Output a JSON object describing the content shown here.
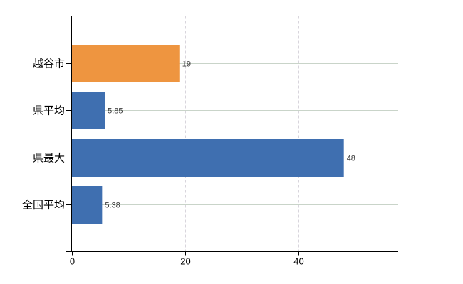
{
  "chart_data": {
    "type": "bar",
    "orientation": "horizontal",
    "title": "",
    "categories": [
      "越谷市",
      "県平均",
      "県最大",
      "全国平均"
    ],
    "values": [
      19,
      5.85,
      48,
      5.38
    ],
    "value_labels": [
      "19",
      "5.85",
      "48",
      "5.38"
    ],
    "bar_colors": [
      "#EE9540",
      "#3F6FB0",
      "#3F6FB0",
      "#3F6FB0"
    ],
    "x_axis": {
      "ticks": [
        0,
        20,
        40
      ],
      "tick_labels": [
        "0",
        "20",
        "40"
      ],
      "range": [
        0,
        57.6
      ]
    },
    "grid": {
      "horizontal_category_lines": true,
      "vertical_tick_lines": true,
      "top_border_dashed": true
    },
    "legend": false,
    "colors": {
      "axis": "#000000",
      "h_gridline": "#C9D4C9",
      "v_gridline": "#D8D5DC",
      "category_label_text": "#000000",
      "tick_label_text": "#000000",
      "value_label_text": "#3A3A3A",
      "background": "#FFFFFF",
      "highlight_bar": "#EE9540",
      "normal_bar": "#3F6FB0"
    }
  }
}
